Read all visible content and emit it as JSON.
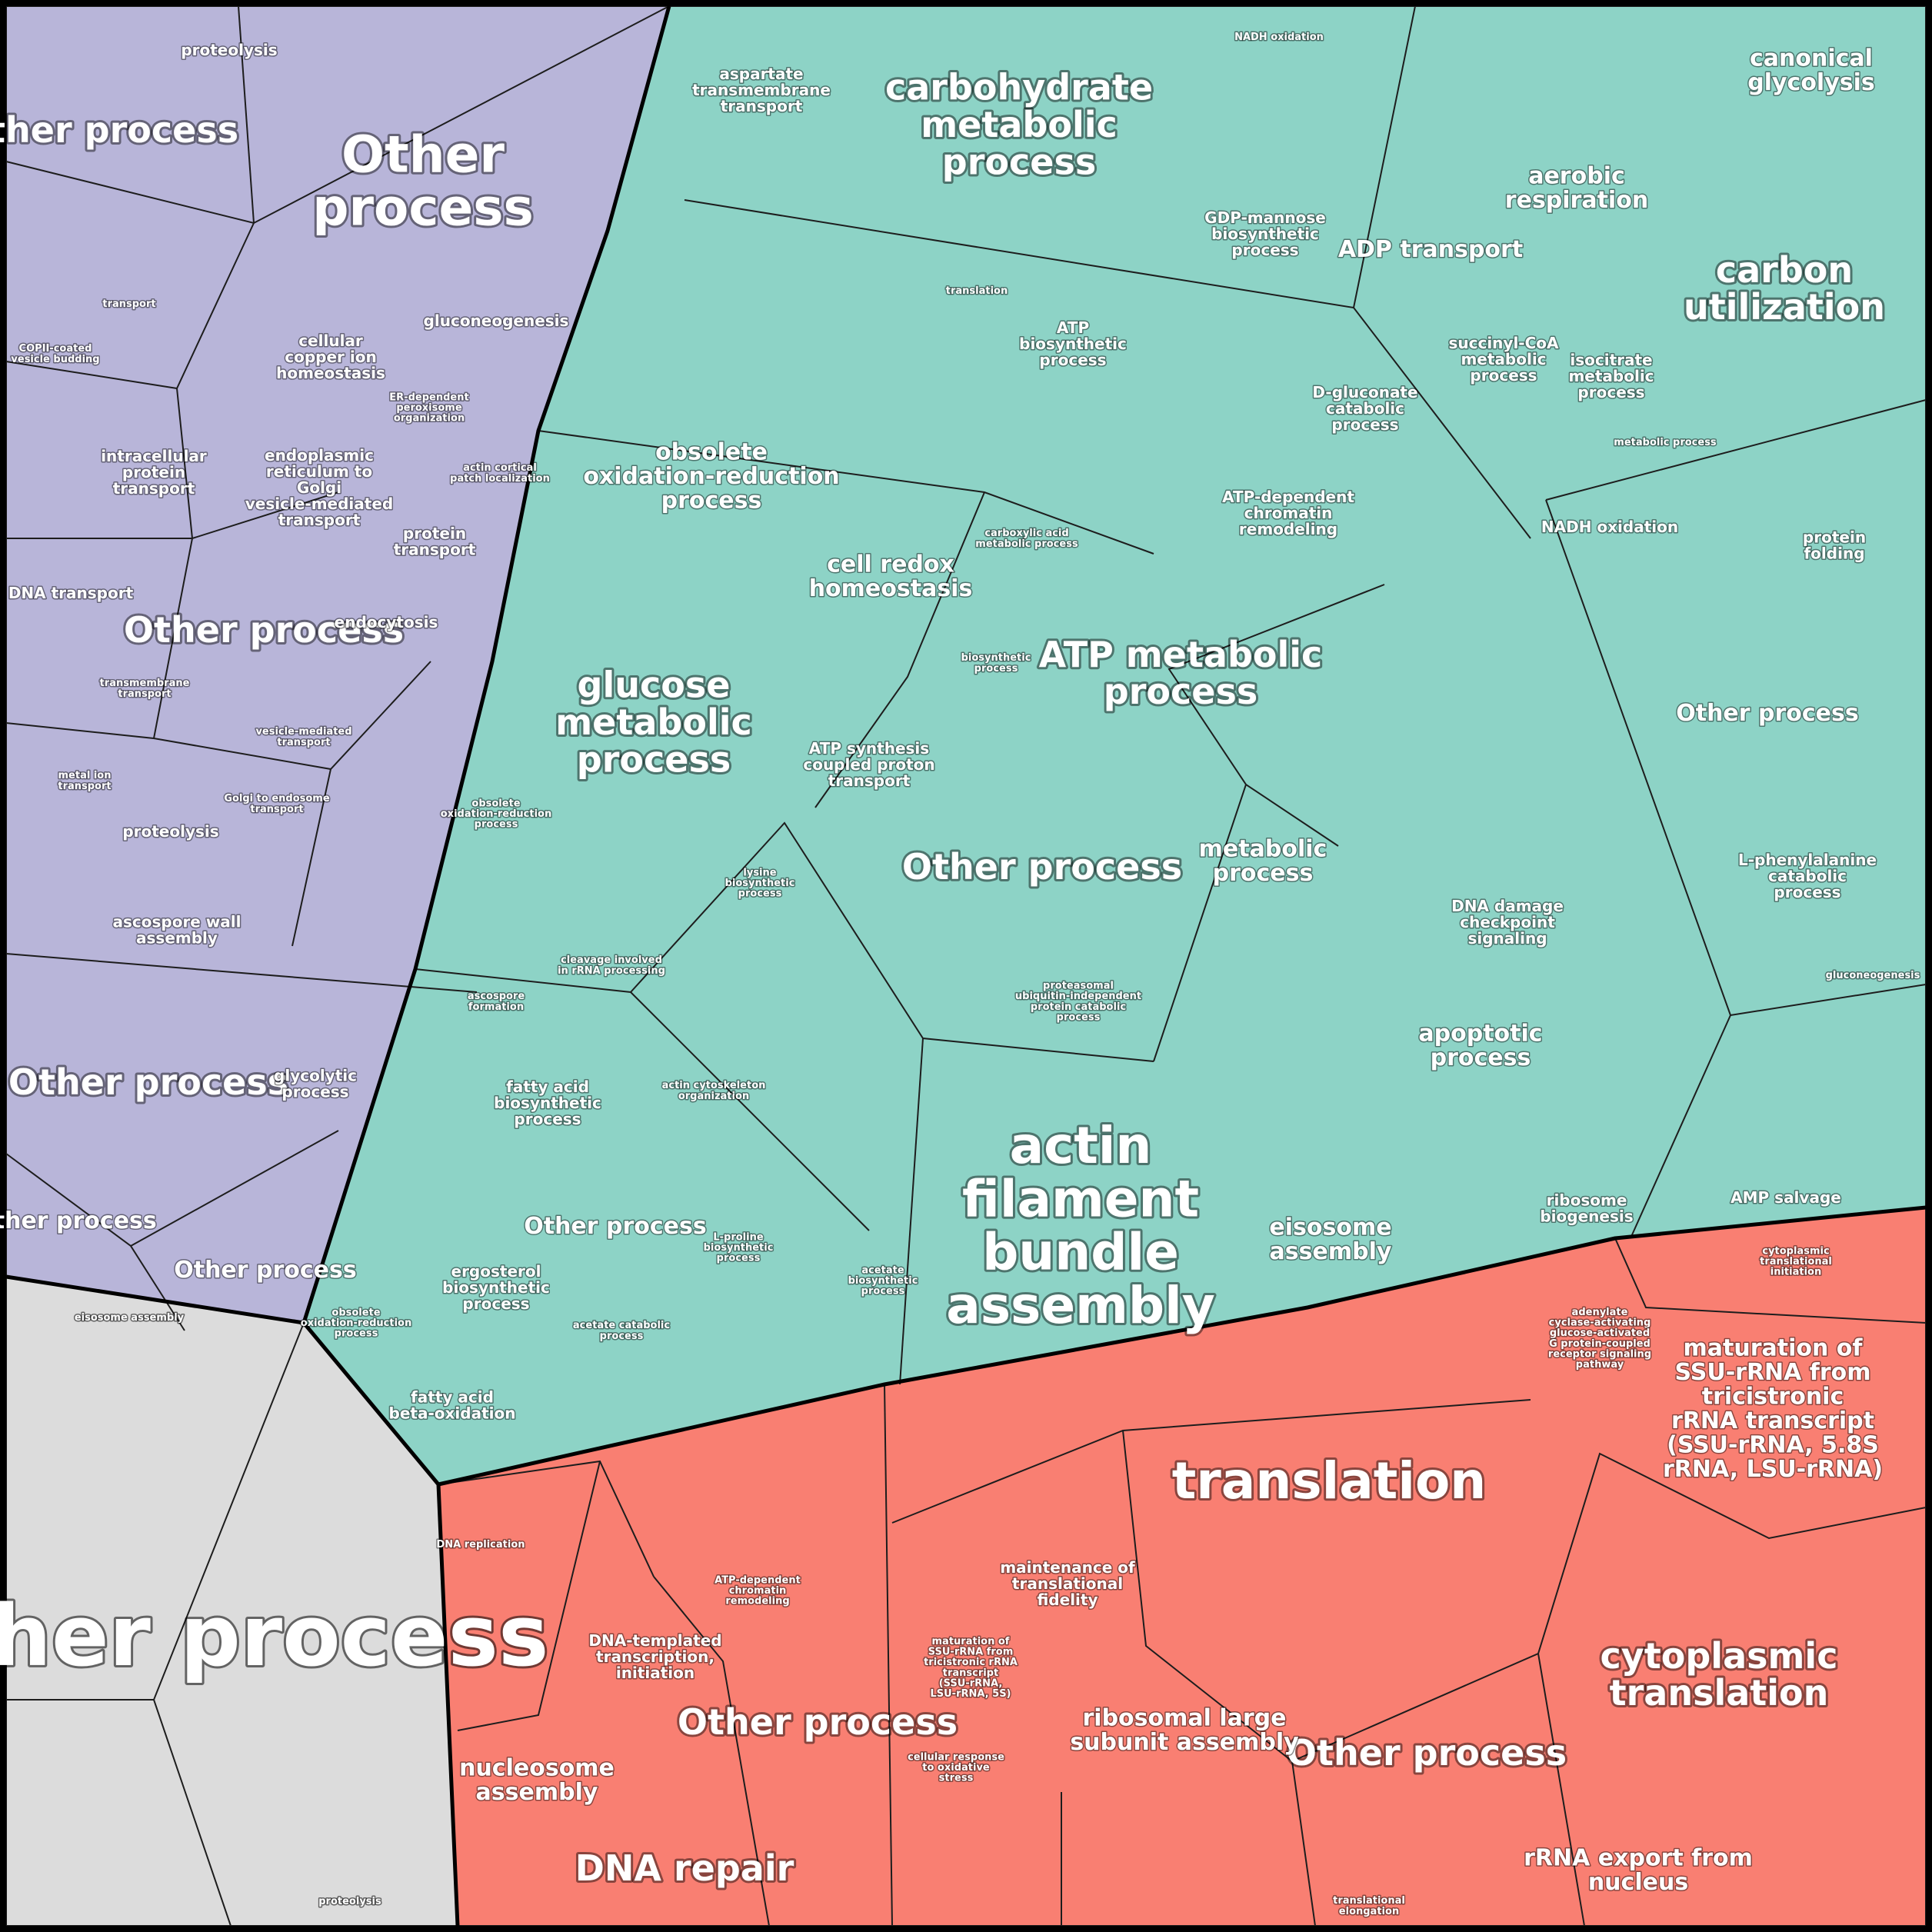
{
  "colors": {
    "purple": "#b8b5d9",
    "teal": "#8dd3c6",
    "salmon": "#f97f72",
    "gray": "#dcdcdc",
    "border": "#000000"
  },
  "purple_labels": [
    {
      "text": "Other process",
      "size": "xl",
      "key": "p1"
    },
    {
      "text": "Other process",
      "size": "lg",
      "key": "p2"
    },
    {
      "text": "proteolysis",
      "size": "sm",
      "key": "p3"
    },
    {
      "text": "gluconeogenesis",
      "size": "sm",
      "key": "p4"
    },
    {
      "text": "intracellular protein transport",
      "size": "sm",
      "key": "p5"
    },
    {
      "text": "endoplasmic reticulum to Golgi vesicle-mediated transport",
      "size": "sm",
      "key": "p6"
    },
    {
      "text": "COPII-coated vesicle budding",
      "size": "xs",
      "key": "p7"
    },
    {
      "text": "cellular copper ion homeostasis",
      "size": "sm",
      "key": "p8"
    },
    {
      "text": "ER-dependent peroxisome organization",
      "size": "xs",
      "key": "p9"
    },
    {
      "text": "actin cortical patch localization",
      "size": "xs",
      "key": "p10"
    },
    {
      "text": "protein transport",
      "size": "sm",
      "key": "p11"
    },
    {
      "text": "DNA transport",
      "size": "sm",
      "key": "p12"
    },
    {
      "text": "Other process",
      "size": "lg",
      "key": "p13"
    },
    {
      "text": "endocytosis",
      "size": "sm",
      "key": "p14"
    },
    {
      "text": "transmembrane transport",
      "size": "xs",
      "key": "p15"
    },
    {
      "text": "metal ion transport",
      "size": "xs",
      "key": "p16"
    },
    {
      "text": "proteolysis",
      "size": "sm",
      "key": "p17"
    },
    {
      "text": "Golgi to endosome transport",
      "size": "xs",
      "key": "p18"
    },
    {
      "text": "ascospore wall assembly",
      "size": "sm",
      "key": "p19"
    },
    {
      "text": "Other process",
      "size": "lg",
      "key": "p20"
    },
    {
      "text": "glycolytic process",
      "size": "sm",
      "key": "p21"
    },
    {
      "text": "Other process",
      "size": "md",
      "key": "p22"
    },
    {
      "text": "Other process",
      "size": "md",
      "key": "p23"
    },
    {
      "text": "vesicle-mediated transport",
      "size": "xs",
      "key": "p24"
    },
    {
      "text": "transport",
      "size": "xs",
      "key": "p25"
    }
  ],
  "teal_labels": [
    {
      "text": "carbohydrate metabolic process",
      "size": "lg",
      "key": "t1"
    },
    {
      "text": "canonical glycolysis",
      "size": "md",
      "key": "t2"
    },
    {
      "text": "aerobic respiration",
      "size": "md",
      "key": "t3"
    },
    {
      "text": "carbon utilization",
      "size": "lg",
      "key": "t4"
    },
    {
      "text": "ADP transport",
      "size": "md",
      "key": "t5"
    },
    {
      "text": "succinyl-CoA metabolic process",
      "size": "sm",
      "key": "t6"
    },
    {
      "text": "isocitrate metabolic process",
      "size": "sm",
      "key": "t7"
    },
    {
      "text": "GDP-mannose biosynthetic process",
      "size": "sm",
      "key": "t8"
    },
    {
      "text": "aspartate transmembrane transport",
      "size": "sm",
      "key": "t9"
    },
    {
      "text": "obsolete oxidation-reduction process",
      "size": "md",
      "key": "t10"
    },
    {
      "text": "glucose metabolic process",
      "size": "lg",
      "key": "t11"
    },
    {
      "text": "cell redox homeostasis",
      "size": "md",
      "key": "t12"
    },
    {
      "text": "ATP metabolic process",
      "size": "lg",
      "key": "t13"
    },
    {
      "text": "ATP synthesis coupled proton transport",
      "size": "sm",
      "key": "t14"
    },
    {
      "text": "Other process",
      "size": "lg",
      "key": "t15"
    },
    {
      "text": "metabolic process",
      "size": "md",
      "key": "t16"
    },
    {
      "text": "ATP biosynthetic process",
      "size": "sm",
      "key": "t17"
    },
    {
      "text": "D-gluconate catabolic process",
      "size": "sm",
      "key": "t18"
    },
    {
      "text": "ATP-dependent chromatin remodeling",
      "size": "sm",
      "key": "t19"
    },
    {
      "text": "NADH oxidation",
      "size": "sm",
      "key": "t20"
    },
    {
      "text": "protein folding",
      "size": "sm",
      "key": "t21"
    },
    {
      "text": "Other process",
      "size": "md",
      "key": "t22"
    },
    {
      "text": "L-phenylalanine catabolic process",
      "size": "sm",
      "key": "t23"
    },
    {
      "text": "actin filament bundle assembly",
      "size": "xl",
      "key": "t24"
    },
    {
      "text": "eisosome assembly",
      "size": "md",
      "key": "t25"
    },
    {
      "text": "apoptotic process",
      "size": "md",
      "key": "t26"
    },
    {
      "text": "fatty acid biosynthetic process",
      "size": "sm",
      "key": "t27"
    },
    {
      "text": "Other process",
      "size": "md",
      "key": "t28"
    },
    {
      "text": "ergosterol biosynthetic process",
      "size": "sm",
      "key": "t29"
    },
    {
      "text": "fatty acid beta-oxidation",
      "size": "sm",
      "key": "t30"
    },
    {
      "text": "obsolete oxidation-reduction process",
      "size": "xs",
      "key": "t31"
    },
    {
      "text": "obsolete oxidation-reduction process",
      "size": "xs",
      "key": "t32"
    },
    {
      "text": "AMP salvage",
      "size": "sm",
      "key": "t33"
    },
    {
      "text": "ribosome biogenesis",
      "size": "sm",
      "key": "t34"
    },
    {
      "text": "cleavage involved in rRNA processing",
      "size": "xs",
      "key": "t35"
    },
    {
      "text": "actin cytoskeleton organization",
      "size": "xs",
      "key": "t36"
    },
    {
      "text": "DNA damage checkpoint signaling",
      "size": "sm",
      "key": "t37"
    },
    {
      "text": "translation",
      "size": "xs",
      "key": "t38"
    },
    {
      "text": "biosynthetic process",
      "size": "xs",
      "key": "t39"
    },
    {
      "text": "carboxylic acid metabolic process",
      "size": "xs",
      "key": "t40"
    },
    {
      "text": "lysine biosynthetic process",
      "size": "xs",
      "key": "t41"
    },
    {
      "text": "acetate biosynthetic process",
      "size": "xs",
      "key": "t42"
    },
    {
      "text": "L-proline biosynthetic process",
      "size": "xs",
      "key": "t43"
    },
    {
      "text": "acetate catabolic process",
      "size": "xs",
      "key": "t44"
    },
    {
      "text": "proteasomal ubiquitin-independent protein catabolic process",
      "size": "xs",
      "key": "t45"
    },
    {
      "text": "ascospore formation",
      "size": "xs",
      "key": "t46"
    },
    {
      "text": "gluconeogenesis",
      "size": "xs",
      "key": "t47"
    },
    {
      "text": "metabolic process",
      "size": "xs",
      "key": "t48"
    },
    {
      "text": "NADH oxidation",
      "size": "xs",
      "key": "t49"
    }
  ],
  "salmon_labels": [
    {
      "text": "translation",
      "size": "xl",
      "key": "s1"
    },
    {
      "text": "maturation of SSU-rRNA from tricistronic rRNA transcript (SSU-rRNA, 5.8S rRNA, LSU-rRNA)",
      "size": "md",
      "key": "s2"
    },
    {
      "text": "cytoplasmic translation",
      "size": "lg",
      "key": "s3"
    },
    {
      "text": "Other process",
      "size": "lg",
      "key": "s4"
    },
    {
      "text": "ribosomal large subunit assembly",
      "size": "md",
      "key": "s5"
    },
    {
      "text": "rRNA export from nucleus",
      "size": "md",
      "key": "s6"
    },
    {
      "text": "Other process",
      "size": "lg",
      "key": "s7"
    },
    {
      "text": "DNA repair",
      "size": "lg",
      "key": "s8"
    },
    {
      "text": "nucleosome assembly",
      "size": "md",
      "key": "s9"
    },
    {
      "text": "DNA-templated transcription, initiation",
      "size": "sm",
      "key": "s10"
    },
    {
      "text": "maintenance of translational fidelity",
      "size": "sm",
      "key": "s11"
    },
    {
      "text": "maturation of SSU-rRNA from tricistronic rRNA transcript (SSU-rRNA, LSU-rRNA, 5S)",
      "size": "xs",
      "key": "s12"
    },
    {
      "text": "ATP-dependent chromatin remodeling",
      "size": "xs",
      "key": "s13"
    },
    {
      "text": "cytoplasmic translational initiation",
      "size": "xs",
      "key": "s14"
    },
    {
      "text": "translational elongation",
      "size": "xs",
      "key": "s15"
    },
    {
      "text": "DNA replication",
      "size": "xs",
      "key": "s16"
    },
    {
      "text": "cellular response to oxidative stress",
      "size": "xs",
      "key": "s17"
    },
    {
      "text": "adenylate cyclase-activating glucose-activated G protein-coupled receptor signaling pathway",
      "size": "xs",
      "key": "s18"
    }
  ],
  "gray_labels": [
    {
      "text": "Other process",
      "size": "xxl",
      "key": "g1"
    },
    {
      "text": "proteolysis",
      "size": "xs",
      "key": "g2"
    },
    {
      "text": "eisosome assembly",
      "size": "xs",
      "key": "g3"
    }
  ]
}
